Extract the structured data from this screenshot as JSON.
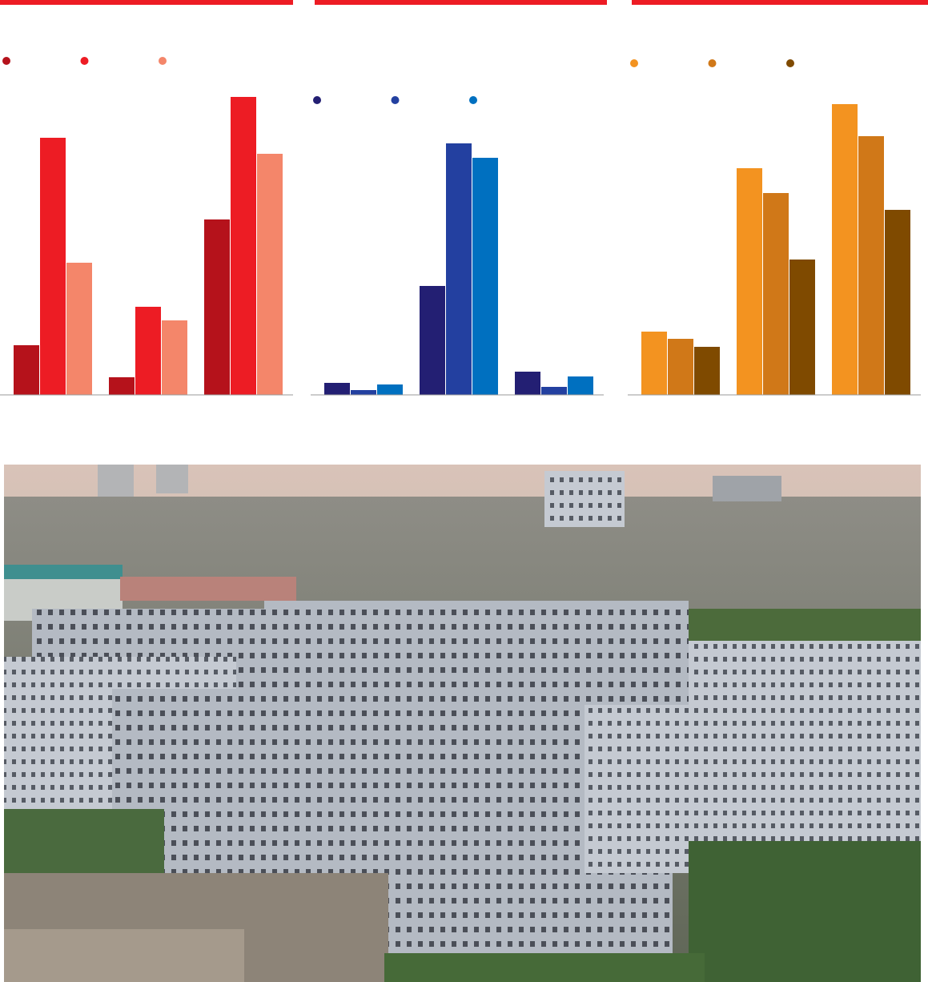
{
  "chart_data": [
    {
      "type": "bar",
      "categories": [
        null,
        null,
        null
      ],
      "ylim": [
        0,
        380
      ],
      "legend": true,
      "series": [
        {
          "color": "#b5121b",
          "values": [
            62,
            22,
            219
          ]
        },
        {
          "color": "#ed1c24",
          "values": [
            321,
            110,
            372
          ]
        },
        {
          "color": "#f4866a",
          "values": [
            165,
            93,
            301
          ]
        }
      ]
    },
    {
      "type": "bar",
      "categories": [
        null,
        null,
        null
      ],
      "ylim": [
        0,
        380
      ],
      "legend": true,
      "series": [
        {
          "color": "#231f73",
          "values": [
            15,
            136,
            29
          ]
        },
        {
          "color": "#2340a0",
          "values": [
            6,
            314,
            10
          ]
        },
        {
          "color": "#0070c0",
          "values": [
            13,
            296,
            23
          ]
        }
      ]
    },
    {
      "type": "bar",
      "categories": [
        null,
        null,
        null
      ],
      "ylim": [
        0,
        380
      ],
      "legend": true,
      "series": [
        {
          "color": "#f39320",
          "values": [
            79,
            283,
            363
          ]
        },
        {
          "color": "#d07818",
          "values": [
            70,
            252,
            323
          ]
        },
        {
          "color": "#7f4a00",
          "values": [
            60,
            169,
            231
          ]
        }
      ]
    }
  ]
}
